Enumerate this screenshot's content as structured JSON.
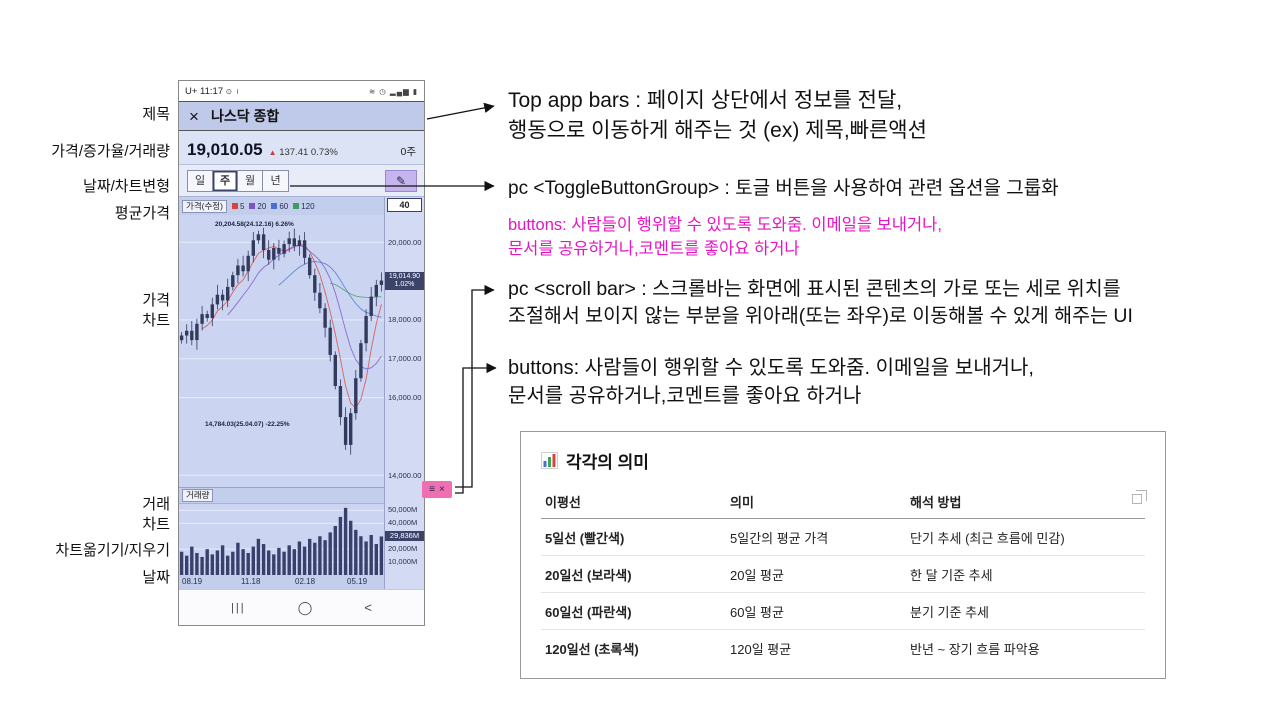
{
  "left_labels": [
    "제목",
    "가격/증가율/거래량",
    "날짜/차트변형",
    "평균가격",
    "가격\n차트",
    "거래\n차트",
    "차트옮기기/지우기",
    "날짜"
  ],
  "phone": {
    "status_bar": {
      "time": "U+ 11:17",
      "left_icons": "⊙ ≀",
      "right_icons": "≋ ◷ ▂▄▆ ▮"
    },
    "app_bar": {
      "close_glyph": "×",
      "title": "나스닥 종합"
    },
    "price_row": {
      "price": "19,010.05",
      "arrow": "▲",
      "change": "137.41",
      "change_pct": "0.73%",
      "holding": "0주"
    },
    "toggle": {
      "options": [
        "일",
        "주",
        "월",
        "년"
      ],
      "selected": "주",
      "brush_glyph": "✎"
    },
    "price_chart": {
      "header": "가격(수정)",
      "legend": [
        {
          "label": "5",
          "color": "#d8433c"
        },
        {
          "label": "20",
          "color": "#7b52c8"
        },
        {
          "label": "60",
          "color": "#4a6fd0"
        },
        {
          "label": "120",
          "color": "#3f9e5f"
        }
      ],
      "scroll_box": "40",
      "high_label": "20,204.58(24.12.16) 6.26%",
      "low_label": "14,784.03(25.04.07) -22.25%",
      "y_ticks": [
        {
          "label": "20,000.00",
          "value": 20000
        },
        {
          "label": "18,000.00",
          "value": 18000
        },
        {
          "label": "17,000.00",
          "value": 17000
        },
        {
          "label": "16,000.00",
          "value": 16000
        },
        {
          "label": "14,000.00",
          "value": 14000
        }
      ],
      "current": {
        "label": "19,014.90",
        "pct": "1.02%",
        "value": 19014.9
      },
      "scale": {
        "top": 20700,
        "bottom": 13700
      },
      "closes": [
        17600,
        17720,
        17480,
        17900,
        18150,
        18050,
        18400,
        18650,
        18500,
        18850,
        19150,
        19400,
        19250,
        19650,
        20050,
        20204,
        19800,
        19550,
        19850,
        19700,
        19950,
        20100,
        19900,
        20050,
        19600,
        19150,
        18700,
        18300,
        17800,
        17100,
        16300,
        15500,
        14784,
        15600,
        16500,
        17400,
        18100,
        18600,
        18900,
        19014
      ]
    },
    "volume_chart": {
      "header": "거래량",
      "menu_glyph": "≡",
      "close_glyph": "×",
      "y_ticks": [
        {
          "label": "50,000M",
          "value": 50000
        },
        {
          "label": "40,000M",
          "value": 40000
        },
        {
          "label": "20,000M",
          "value": 20000
        },
        {
          "label": "10,000M",
          "value": 10000
        }
      ],
      "current": {
        "label": "29,836M",
        "value": 29836
      },
      "scale": {
        "top": 55000
      },
      "volumes": [
        18000,
        15000,
        22000,
        17000,
        14000,
        20000,
        16000,
        19000,
        23000,
        15000,
        18000,
        25000,
        20000,
        17000,
        22000,
        28000,
        24000,
        19000,
        16000,
        21000,
        18000,
        23000,
        20000,
        26000,
        22000,
        28000,
        25000,
        30000,
        27000,
        33000,
        38000,
        45000,
        52000,
        42000,
        35000,
        30000,
        26000,
        31000,
        24000,
        29836
      ]
    },
    "x_labels": [
      "08.19",
      "11.18",
      "02.18",
      "05.19"
    ],
    "nav": {
      "recents": "|||",
      "home": "◯",
      "back": "<"
    }
  },
  "annotations": {
    "top_app_bar": "Top app bars : 페이지 상단에서 정보를 전달,\n행동으로 이동하게 해주는 것 (ex) 제목,빠른액션",
    "toggle_group": "pc <ToggleButtonGroup> : 토글 버튼을 사용하여 관련 옵션을 그룹화",
    "buttons_pink": "buttons: 사람들이 행위할 수 있도록 도와줌. 이메일을 보내거나,\n문서를 공유하거나,코멘트를 좋아요 하거나",
    "scroll_bar": "pc <scroll bar> : 스크롤바는 화면에 표시된 콘텐츠의 가로 또는 세로 위치를\n조절해서 보이지 않는 부분을 위아래(또는 좌우)로 이동해볼 수 있게 해주는 UI",
    "buttons_black": "buttons: 사람들이 행위할 수 있도록 도와줌. 이메일을 보내거나,\n 문서를 공유하거나,코멘트를 좋아요 하거나"
  },
  "table": {
    "title": "각각의 의미",
    "headers": [
      "이평선",
      "의미",
      "해석 방법"
    ],
    "rows": [
      [
        "5일선 (빨간색)",
        "5일간의 평균 가격",
        "단기 추세 (최근 흐름에 민감)"
      ],
      [
        "20일선 (보라색)",
        "20일 평균",
        "한 달 기준 추세"
      ],
      [
        "60일선 (파란색)",
        "60일 평균",
        "분기 기준 추세"
      ],
      [
        "120일선 (초록색)",
        "120일 평균",
        "반년 ~ 장기 흐름 파악용"
      ]
    ]
  },
  "colors": {
    "candle": "#323a5e",
    "volume_bar": "#39406b",
    "highlight_pink": "#ef6fb2",
    "annotation_pink": "#e515c4",
    "chart_bg": "#cbd5f2"
  }
}
